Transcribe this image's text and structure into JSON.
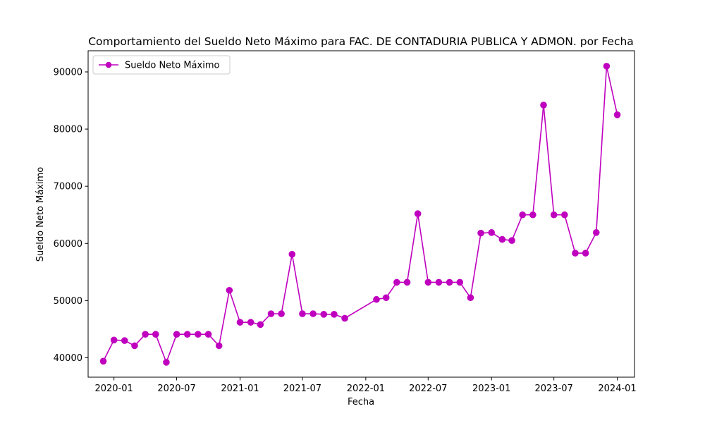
{
  "chart_data": {
    "type": "line",
    "title": "Comportamiento del Sueldo Neto Máximo para FAC. DE CONTADURIA PUBLICA Y ADMON. por Fecha",
    "xlabel": "Fecha",
    "ylabel": "Sueldo Neto Máximo",
    "legend_position": "upper-left",
    "grid": false,
    "color": "#bf00bf",
    "xlim": [
      "2019-10-18",
      "2024-02-20"
    ],
    "ylim": [
      36600,
      93700
    ],
    "x_ticks": [
      "2020-01-01",
      "2020-07-01",
      "2021-01-01",
      "2021-07-01",
      "2022-01-01",
      "2022-07-01",
      "2023-01-01",
      "2023-07-01",
      "2024-01-01"
    ],
    "x_tick_labels": [
      "2020-01",
      "2020-07",
      "2021-01",
      "2021-07",
      "2022-01",
      "2022-07",
      "2023-01",
      "2023-07",
      "2024-01"
    ],
    "y_ticks": [
      40000,
      50000,
      60000,
      70000,
      80000,
      90000
    ],
    "y_tick_labels": [
      "40000",
      "50000",
      "60000",
      "70000",
      "80000",
      "90000"
    ],
    "series": [
      {
        "name": "Sueldo Neto Máximo",
        "marker": "circle",
        "x": [
          "2019-12-01",
          "2020-01-01",
          "2020-02-01",
          "2020-03-01",
          "2020-04-01",
          "2020-05-01",
          "2020-06-01",
          "2020-07-01",
          "2020-08-01",
          "2020-09-01",
          "2020-10-01",
          "2020-11-01",
          "2020-12-01",
          "2021-01-01",
          "2021-02-01",
          "2021-03-01",
          "2021-04-01",
          "2021-05-01",
          "2021-06-01",
          "2021-07-01",
          "2021-08-01",
          "2021-09-01",
          "2021-10-01",
          "2021-11-01",
          "2022-02-01",
          "2022-03-01",
          "2022-04-01",
          "2022-05-01",
          "2022-06-01",
          "2022-07-01",
          "2022-08-01",
          "2022-09-01",
          "2022-10-01",
          "2022-11-01",
          "2022-12-01",
          "2023-01-01",
          "2023-02-01",
          "2023-03-01",
          "2023-04-01",
          "2023-05-01",
          "2023-06-01",
          "2023-07-01",
          "2023-08-01",
          "2023-09-01",
          "2023-10-01",
          "2023-11-01",
          "2023-12-01",
          "2024-01-01"
        ],
        "values": [
          39400,
          43100,
          43000,
          42100,
          44100,
          44100,
          39200,
          44100,
          44100,
          44100,
          44100,
          42100,
          51800,
          46200,
          46200,
          45800,
          47700,
          47700,
          58100,
          47700,
          47700,
          47600,
          47600,
          46900,
          50200,
          50500,
          53200,
          53200,
          65200,
          53200,
          53200,
          53200,
          53200,
          50500,
          61800,
          61900,
          60700,
          60500,
          65000,
          65000,
          84200,
          65000,
          65000,
          58300,
          58300,
          61900,
          91000,
          82500
        ]
      }
    ]
  }
}
